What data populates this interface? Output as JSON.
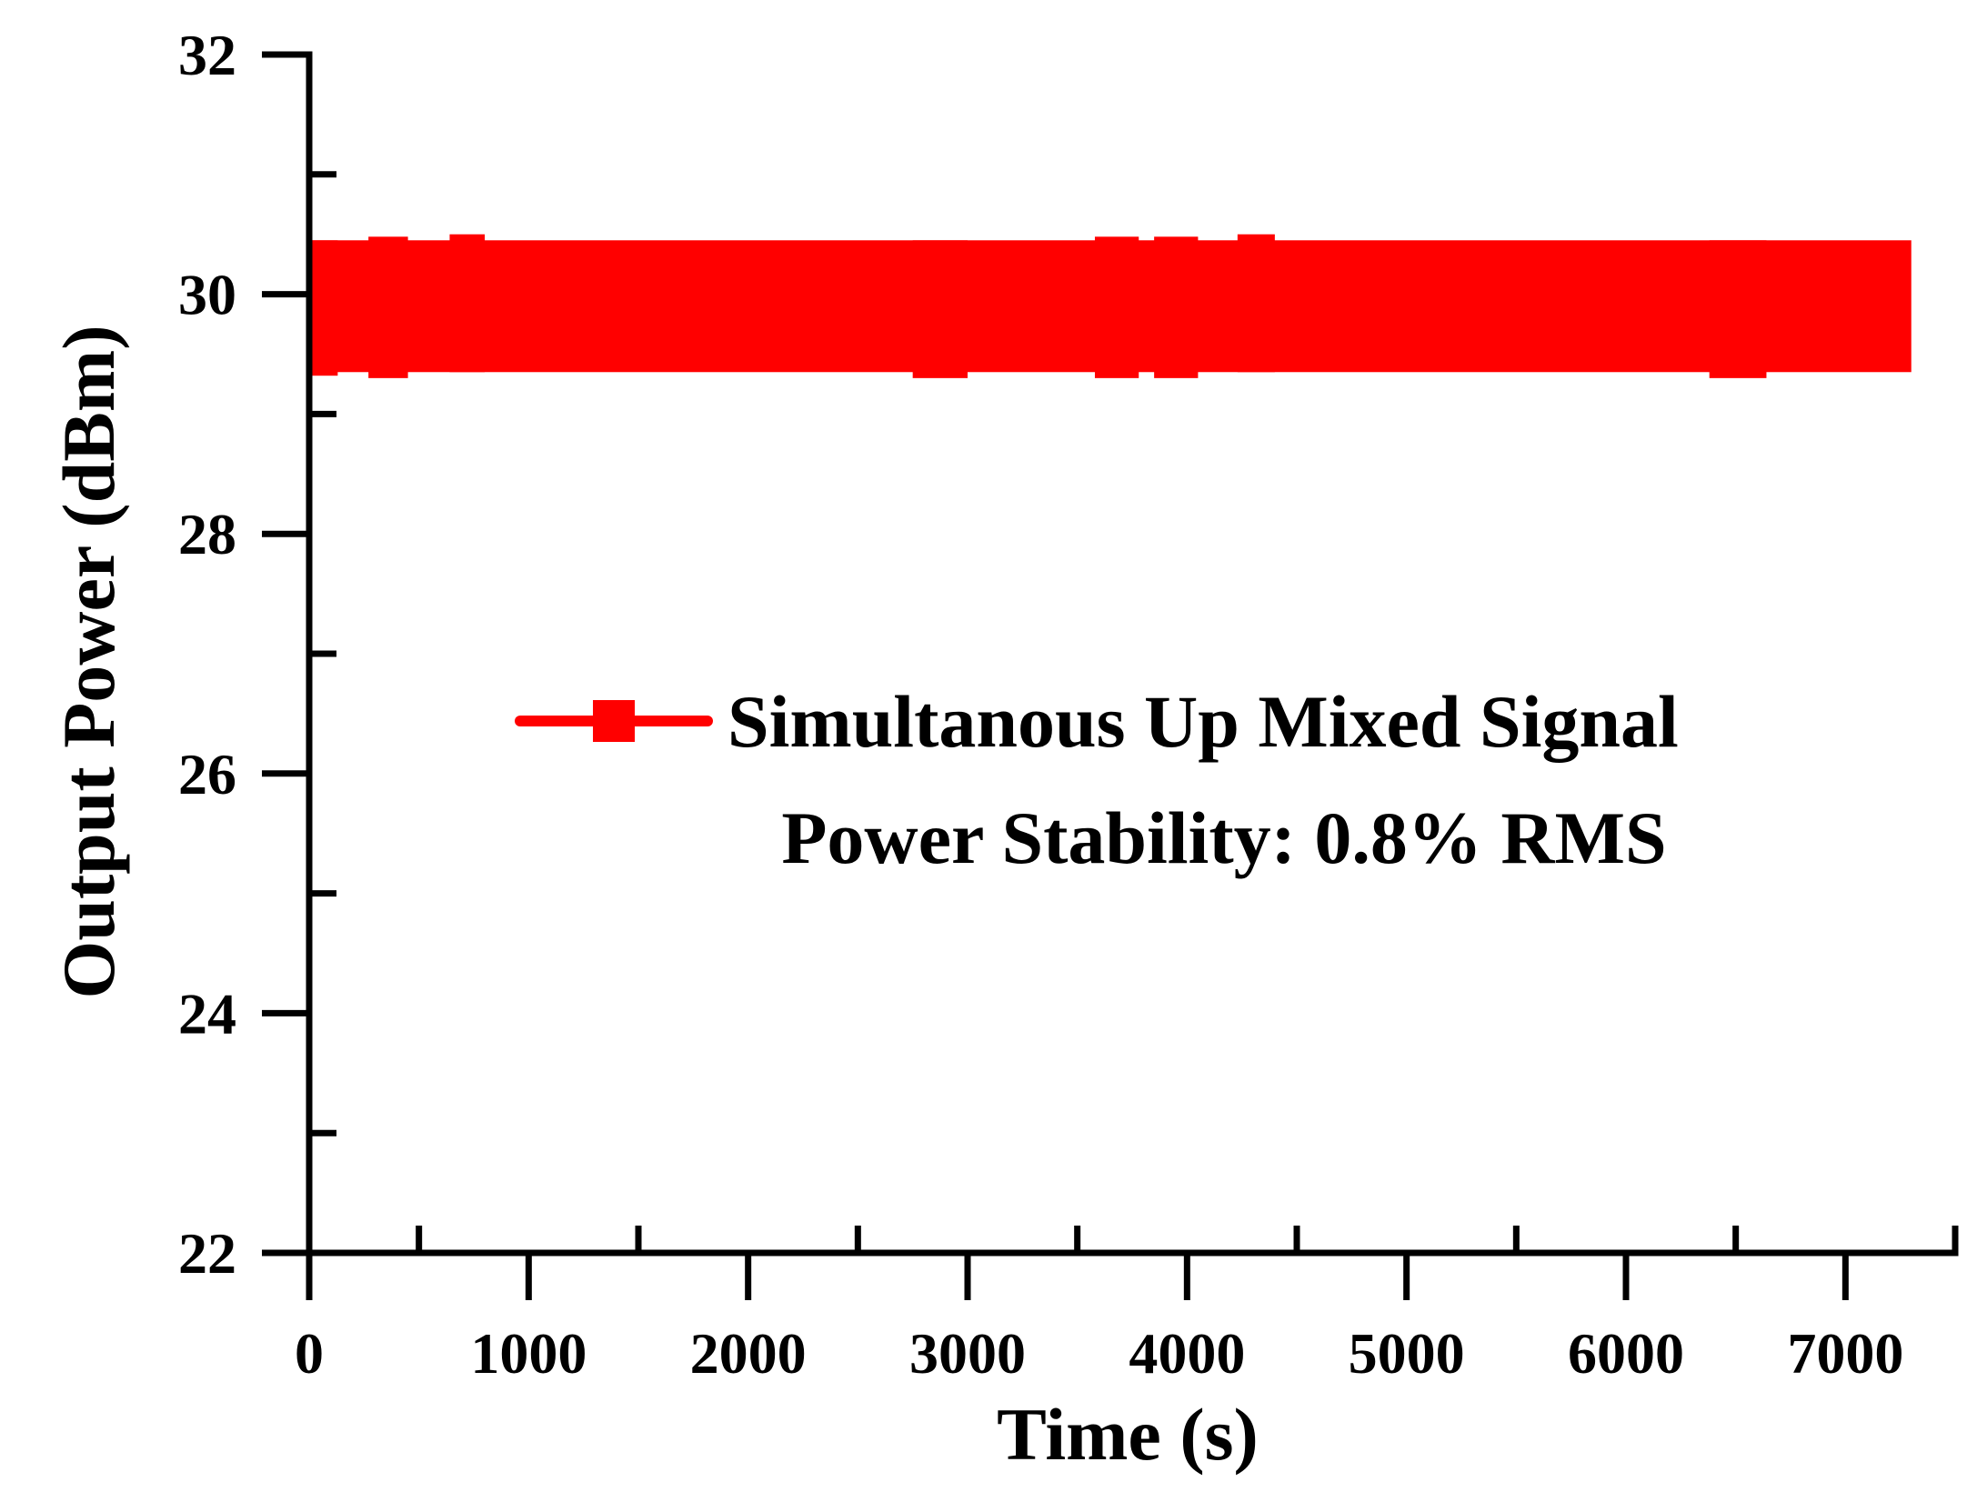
{
  "chart_data": {
    "type": "line",
    "xlabel": "Time (s)",
    "ylabel": "Output Power (dBm)",
    "xlim": [
      0,
      7500
    ],
    "ylim": [
      22,
      32
    ],
    "x_ticks": [
      0,
      1000,
      2000,
      3000,
      4000,
      5000,
      6000,
      7000
    ],
    "x_tick_labels": [
      "0",
      "1000",
      "2000",
      "3000",
      "4000",
      "5000",
      "6000",
      "7000"
    ],
    "x_minor_ticks": [
      500,
      1500,
      2500,
      3500,
      4500,
      5500,
      6500,
      7500
    ],
    "y_ticks": [
      22,
      24,
      26,
      28,
      30,
      32
    ],
    "y_tick_labels": [
      "22",
      "24",
      "26",
      "28",
      "30",
      "32"
    ],
    "y_minor_ticks": [
      23,
      25,
      27,
      29,
      31
    ],
    "grid": false,
    "legend_position": "center-right",
    "color": "#ff0000",
    "series": [
      {
        "name": "Simultanous Up Mixed Signal",
        "x_range": [
          0,
          7300
        ],
        "y_mean": 29.9,
        "y_band": [
          29.35,
          30.45
        ],
        "excursions": [
          {
            "x": [
              0,
              130
            ],
            "y": [
              29.32,
              30.45
            ]
          },
          {
            "x": [
              270,
              450
            ],
            "y": [
              29.3,
              30.48
            ]
          },
          {
            "x": [
              640,
              800
            ],
            "y": [
              29.35,
              30.5
            ]
          },
          {
            "x": [
              2750,
              3000
            ],
            "y": [
              29.3,
              30.45
            ]
          },
          {
            "x": [
              3580,
              3780
            ],
            "y": [
              29.3,
              30.48
            ]
          },
          {
            "x": [
              3850,
              4050
            ],
            "y": [
              29.3,
              30.48
            ]
          },
          {
            "x": [
              4230,
              4400
            ],
            "y": [
              29.35,
              30.5
            ]
          },
          {
            "x": [
              6380,
              6640
            ],
            "y": [
              29.3,
              30.45
            ]
          }
        ]
      }
    ],
    "annotations": [
      "Power Stability: 0.8% RMS"
    ]
  }
}
